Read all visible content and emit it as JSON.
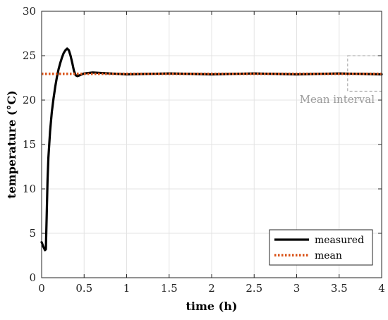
{
  "chart_data": {
    "type": "line",
    "title": "",
    "xlabel": "time (h)",
    "ylabel": "temperature (°C)",
    "xlim": [
      0,
      4
    ],
    "ylim": [
      0,
      30
    ],
    "xticks": [
      0,
      0.5,
      1,
      1.5,
      2,
      2.5,
      3,
      3.5,
      4
    ],
    "xtick_labels": [
      "0",
      "0.5",
      "1",
      "1.5",
      "2",
      "2.5",
      "3",
      "3.5",
      "4"
    ],
    "yticks": [
      0,
      5,
      10,
      15,
      20,
      25,
      30
    ],
    "ytick_labels": [
      "0",
      "5",
      "10",
      "15",
      "20",
      "25",
      "30"
    ],
    "grid": true,
    "legend_position": "bottom-right",
    "series": [
      {
        "name": "measured",
        "color": "#000000",
        "style": "solid",
        "x": [
          0,
          0.02,
          0.04,
          0.05,
          0.06,
          0.07,
          0.08,
          0.1,
          0.12,
          0.14,
          0.16,
          0.18,
          0.2,
          0.22,
          0.24,
          0.26,
          0.28,
          0.3,
          0.32,
          0.34,
          0.36,
          0.38,
          0.4,
          0.42,
          0.45,
          0.5,
          0.6,
          0.8,
          1.0,
          1.5,
          2.0,
          2.5,
          3.0,
          3.5,
          4.0
        ],
        "y": [
          4.0,
          3.5,
          3.1,
          3.2,
          7.0,
          11.0,
          13.5,
          16.5,
          18.7,
          20.2,
          21.5,
          22.6,
          23.5,
          24.2,
          24.8,
          25.3,
          25.6,
          25.8,
          25.6,
          25.0,
          24.2,
          23.3,
          22.8,
          22.7,
          22.8,
          23.0,
          23.1,
          23.0,
          22.9,
          23.0,
          22.9,
          23.0,
          22.9,
          23.0,
          22.9
        ]
      },
      {
        "name": "mean",
        "color": "#d95319",
        "style": "dotted",
        "x": [
          0,
          4
        ],
        "y": [
          22.95,
          22.95
        ]
      }
    ],
    "annotations": [
      {
        "text": "Mean interval",
        "box_x": [
          3.6,
          4.0
        ],
        "box_y": [
          21,
          25
        ]
      }
    ]
  }
}
